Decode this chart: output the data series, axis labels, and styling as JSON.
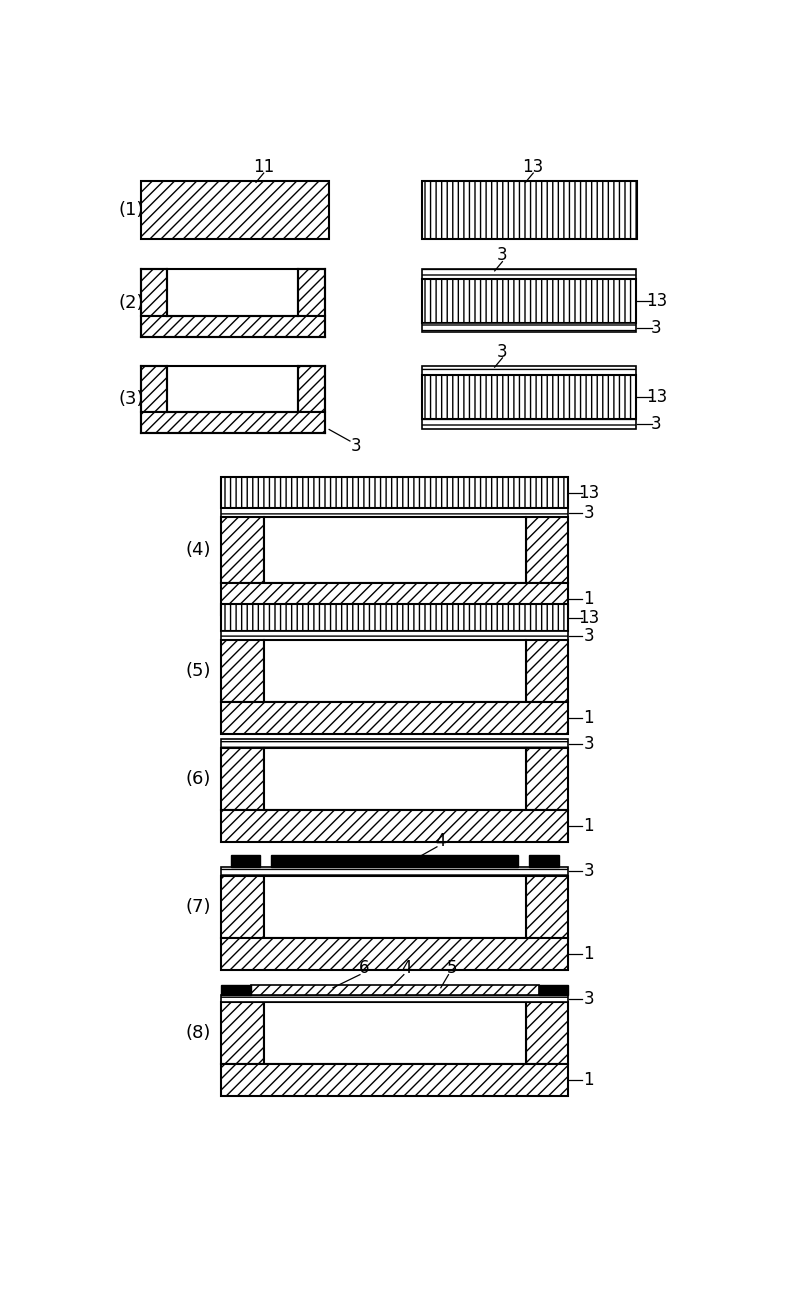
{
  "bg_color": "#ffffff",
  "figsize": [
    8.0,
    13.14
  ],
  "dpi": 100,
  "lw": 1.5
}
